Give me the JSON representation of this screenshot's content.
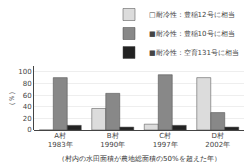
{
  "chart_data": {
    "type": "bar",
    "categories": [
      "A村\n1983年",
      "B村\n1990年",
      "C村\n1997年",
      "D村\n2002年"
    ],
    "series": [
      {
        "name": "□耐冷性：豊稲12号に相当",
        "color": "#dcdcdc",
        "values": [
          0,
          37,
          10,
          90
        ]
      },
      {
        "name": "■耐冷性：豊稲10号に相当",
        "color": "#888888",
        "values": [
          90,
          63,
          95,
          30
        ]
      },
      {
        "name": "■耐冷性：空育131号に相当",
        "color": "#222222",
        "values": [
          8,
          5,
          8,
          5
        ]
      }
    ],
    "ylabel": "（％）",
    "ylim": [
      0,
      110
    ],
    "yticks": [
      0,
      20,
      40,
      60,
      80,
      100
    ],
    "grid": true,
    "legend": "upper right",
    "annotations": [
      "（村内の水田面積が農地総面積の50%を超えた年）"
    ]
  }
}
